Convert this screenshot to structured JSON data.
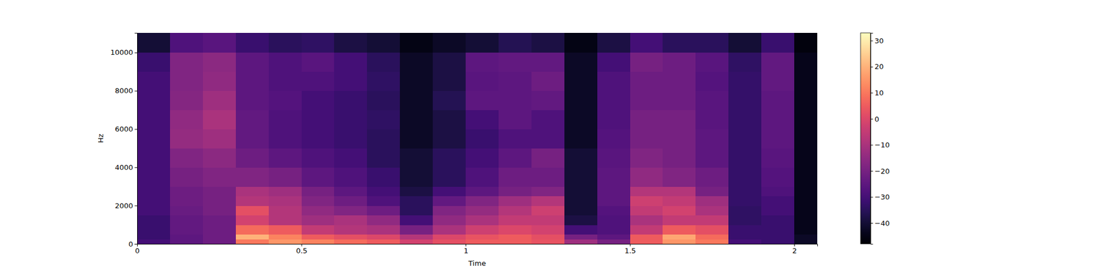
{
  "chart_data": {
    "type": "heatmap",
    "x_label": "Time",
    "y_label": "Hz",
    "xlim": [
      0,
      2.07
    ],
    "ylim": [
      0,
      11025
    ],
    "xticks": [
      0,
      0.5,
      1,
      1.5,
      2
    ],
    "yticks": [
      0,
      2000,
      4000,
      6000,
      8000,
      10000
    ],
    "x_bins": [
      0,
      0.1,
      0.2,
      0.3,
      0.4,
      0.5,
      0.6,
      0.7,
      0.8,
      0.9,
      1.0,
      1.1,
      1.2,
      1.3,
      1.4,
      1.5,
      1.6,
      1.7,
      1.8,
      1.9,
      2.0,
      2.07
    ],
    "y_bins": [
      0,
      250,
      500,
      1000,
      1500,
      2000,
      2500,
      3000,
      4000,
      5000,
      6000,
      7000,
      8000,
      9000,
      10000,
      11025
    ],
    "values": [
      [
        -30,
        -25,
        -22,
        10,
        15,
        12,
        8,
        5,
        -2,
        2,
        5,
        5,
        3,
        -12,
        -20,
        5,
        15,
        10,
        -30,
        -32,
        -42
      ],
      [
        -32,
        -25,
        -22,
        20,
        12,
        5,
        2,
        0,
        -8,
        0,
        3,
        5,
        2,
        -20,
        -25,
        5,
        18,
        8,
        -32,
        -32,
        -42
      ],
      [
        -32,
        -24,
        -22,
        8,
        5,
        -5,
        -8,
        -10,
        -20,
        -10,
        -3,
        0,
        -2,
        -30,
        -28,
        -5,
        5,
        2,
        -32,
        -32,
        -44
      ],
      [
        -32,
        -24,
        -22,
        -2,
        -8,
        -12,
        -10,
        -15,
        -30,
        -15,
        -10,
        -5,
        -5,
        -38,
        -28,
        -10,
        -5,
        -5,
        -34,
        -32,
        -44
      ],
      [
        -30,
        -23,
        -20,
        2,
        -8,
        -15,
        -18,
        -22,
        -35,
        -18,
        -14,
        -8,
        -3,
        -40,
        -27,
        -5,
        -2,
        -10,
        -34,
        -30,
        -44
      ],
      [
        -30,
        -22,
        -20,
        -8,
        -10,
        -18,
        -22,
        -28,
        -35,
        -24,
        -18,
        -12,
        -8,
        -40,
        -25,
        -3,
        -5,
        -12,
        -33,
        -30,
        -44
      ],
      [
        -30,
        -22,
        -20,
        -10,
        -12,
        -20,
        -25,
        -30,
        -38,
        -30,
        -25,
        -20,
        -18,
        -40,
        -25,
        -8,
        -8,
        -20,
        -33,
        -28,
        -44
      ],
      [
        -30,
        -20,
        -18,
        -18,
        -20,
        -25,
        -28,
        -32,
        -40,
        -35,
        -28,
        -22,
        -22,
        -40,
        -25,
        -15,
        -18,
        -22,
        -33,
        -27,
        -44
      ],
      [
        -30,
        -18,
        -16,
        -22,
        -25,
        -28,
        -30,
        -35,
        -40,
        -35,
        -30,
        -25,
        -20,
        -40,
        -26,
        -18,
        -20,
        -25,
        -33,
        -26,
        -44
      ],
      [
        -30,
        -14,
        -12,
        -24,
        -28,
        -30,
        -32,
        -35,
        -42,
        -38,
        -32,
        -28,
        -28,
        -42,
        -27,
        -20,
        -20,
        -25,
        -33,
        -25,
        -44
      ],
      [
        -30,
        -15,
        -10,
        -24,
        -28,
        -30,
        -32,
        -34,
        -42,
        -38,
        -30,
        -25,
        -28,
        -42,
        -28,
        -20,
        -20,
        -26,
        -33,
        -25,
        -44
      ],
      [
        -30,
        -17,
        -12,
        -25,
        -27,
        -30,
        -32,
        -35,
        -42,
        -36,
        -25,
        -25,
        -24,
        -42,
        -28,
        -22,
        -22,
        -26,
        -33,
        -25,
        -44
      ],
      [
        -30,
        -18,
        -15,
        -25,
        -28,
        -28,
        -30,
        -34,
        -42,
        -38,
        -26,
        -25,
        -22,
        -42,
        -28,
        -22,
        -22,
        -27,
        -33,
        -24,
        -44
      ],
      [
        -32,
        -18,
        -16,
        -25,
        -28,
        -26,
        -30,
        -35,
        -42,
        -38,
        -25,
        -24,
        -24,
        -42,
        -30,
        -20,
        -22,
        -26,
        -34,
        -24,
        -44
      ],
      [
        -40,
        -28,
        -26,
        -32,
        -35,
        -34,
        -38,
        -40,
        -45,
        -42,
        -40,
        -36,
        -38,
        -45,
        -38,
        -30,
        -35,
        -35,
        -40,
        -32,
        -46
      ]
    ],
    "color": "magma",
    "colorbar_range": [
      -48,
      33
    ],
    "colorbar_ticks": [
      {
        "value": -40,
        "label": "−40"
      },
      {
        "value": -30,
        "label": "−30"
      },
      {
        "value": -20,
        "label": "−20"
      },
      {
        "value": -10,
        "label": "−10"
      },
      0,
      10,
      20,
      30
    ]
  }
}
